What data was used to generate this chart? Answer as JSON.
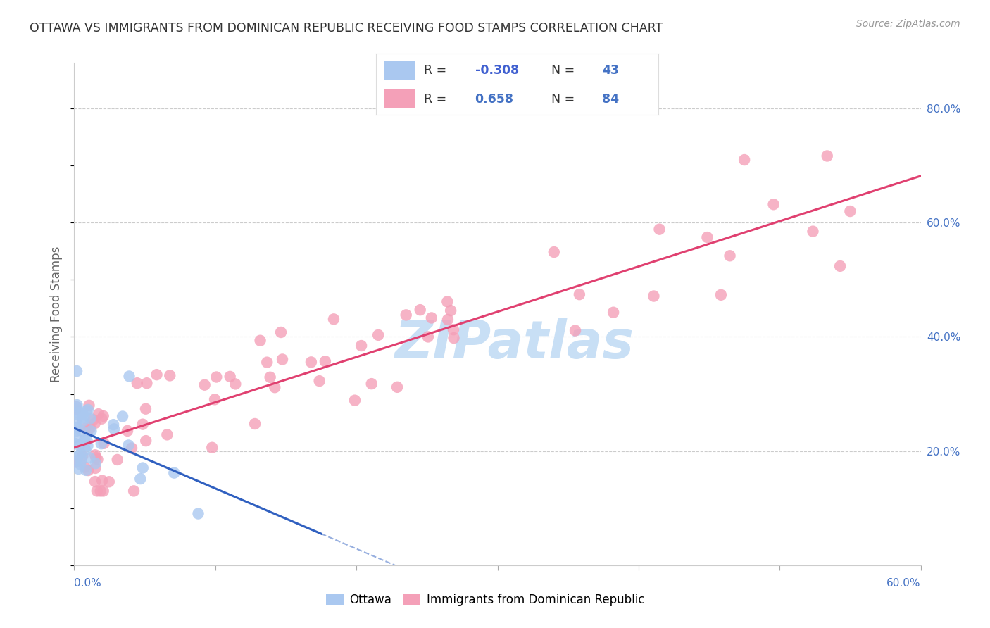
{
  "title": "OTTAWA VS IMMIGRANTS FROM DOMINICAN REPUBLIC RECEIVING FOOD STAMPS CORRELATION CHART",
  "source": "Source: ZipAtlas.com",
  "ylabel": "Receiving Food Stamps",
  "xlim": [
    0.0,
    0.6
  ],
  "ylim": [
    0.0,
    0.88
  ],
  "color_ottawa": "#aac8f0",
  "color_dr": "#f4a0b8",
  "color_line_ottawa": "#3060c0",
  "color_line_dr": "#e04070",
  "color_axis_labels": "#4472c4",
  "color_title": "#333333",
  "background_color": "#ffffff",
  "watermark_text": "ZIPatlas",
  "watermark_color": "#c8dff5",
  "legend_r1_label": "R = ",
  "legend_r1_val": "-0.308",
  "legend_n1_label": "N = ",
  "legend_n1_val": "43",
  "legend_r2_label": "R =  ",
  "legend_r2_val": "0.658",
  "legend_n2_label": "N = ",
  "legend_n2_val": "84",
  "legend_r1_color": "#4060c0",
  "legend_n1_color": "#4472c4",
  "legend_r2_color": "#4472c4",
  "legend_n2_color": "#4472c4"
}
